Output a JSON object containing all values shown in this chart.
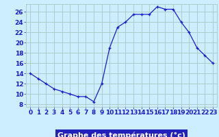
{
  "hours": [
    0,
    1,
    2,
    3,
    4,
    5,
    6,
    7,
    8,
    9,
    10,
    11,
    12,
    13,
    14,
    15,
    16,
    17,
    18,
    19,
    20,
    21,
    22,
    23
  ],
  "temps": [
    14,
    13,
    12,
    11,
    10.5,
    10,
    9.5,
    9.5,
    8.5,
    12,
    19,
    23,
    24,
    25.5,
    25.5,
    25.5,
    27,
    26.5,
    26.5,
    24,
    22,
    19,
    17.5,
    16
  ],
  "line_color": "#1a1acc",
  "marker": "+",
  "bg_color": "#cceeff",
  "grid_color": "#aacccc",
  "xlabel": "Graphe des températures (°c)",
  "xlabel_bg": "#2222bb",
  "xlabel_color": "#ffffff",
  "ylabel_ticks": [
    8,
    10,
    12,
    14,
    16,
    18,
    20,
    22,
    24,
    26
  ],
  "xlim": [
    -0.5,
    23.5
  ],
  "ylim": [
    7.5,
    27.5
  ],
  "tick_fontsize": 6.5,
  "label_fontsize": 8
}
